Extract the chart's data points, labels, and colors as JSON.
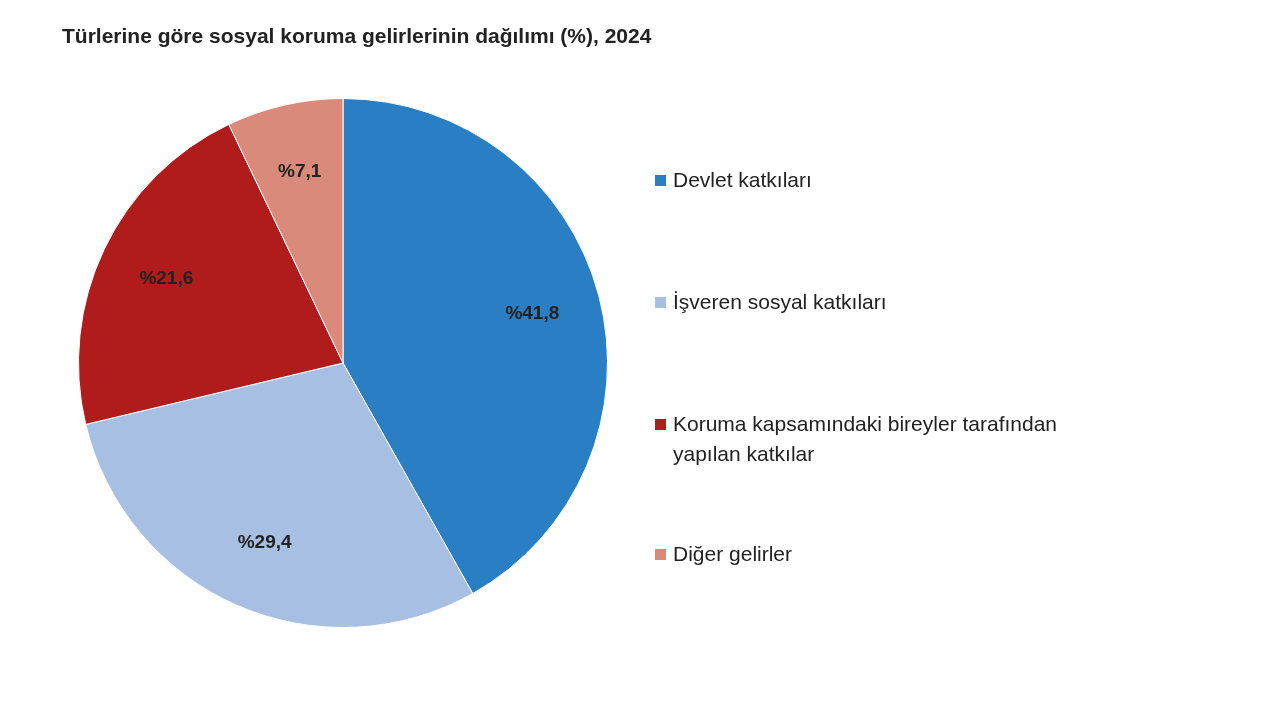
{
  "chart_data": {
    "type": "pie",
    "title": "Türlerine göre sosyal koruma gelirlerinin dağılımı (%), 2024",
    "categories": [
      "Devlet katkıları",
      "İşveren sosyal katkıları",
      "Koruma kapsamındaki bireyler tarafından yapılan katkılar",
      "Diğer gelirler"
    ],
    "values": [
      41.8,
      29.4,
      21.6,
      7.1
    ],
    "colors": [
      "#2a7fc4",
      "#a7bfe3",
      "#b01c1c",
      "#d98a7a"
    ],
    "value_labels": [
      "%41,8",
      "%29,4",
      "%21,6",
      "%7,1"
    ],
    "legend": "right"
  }
}
